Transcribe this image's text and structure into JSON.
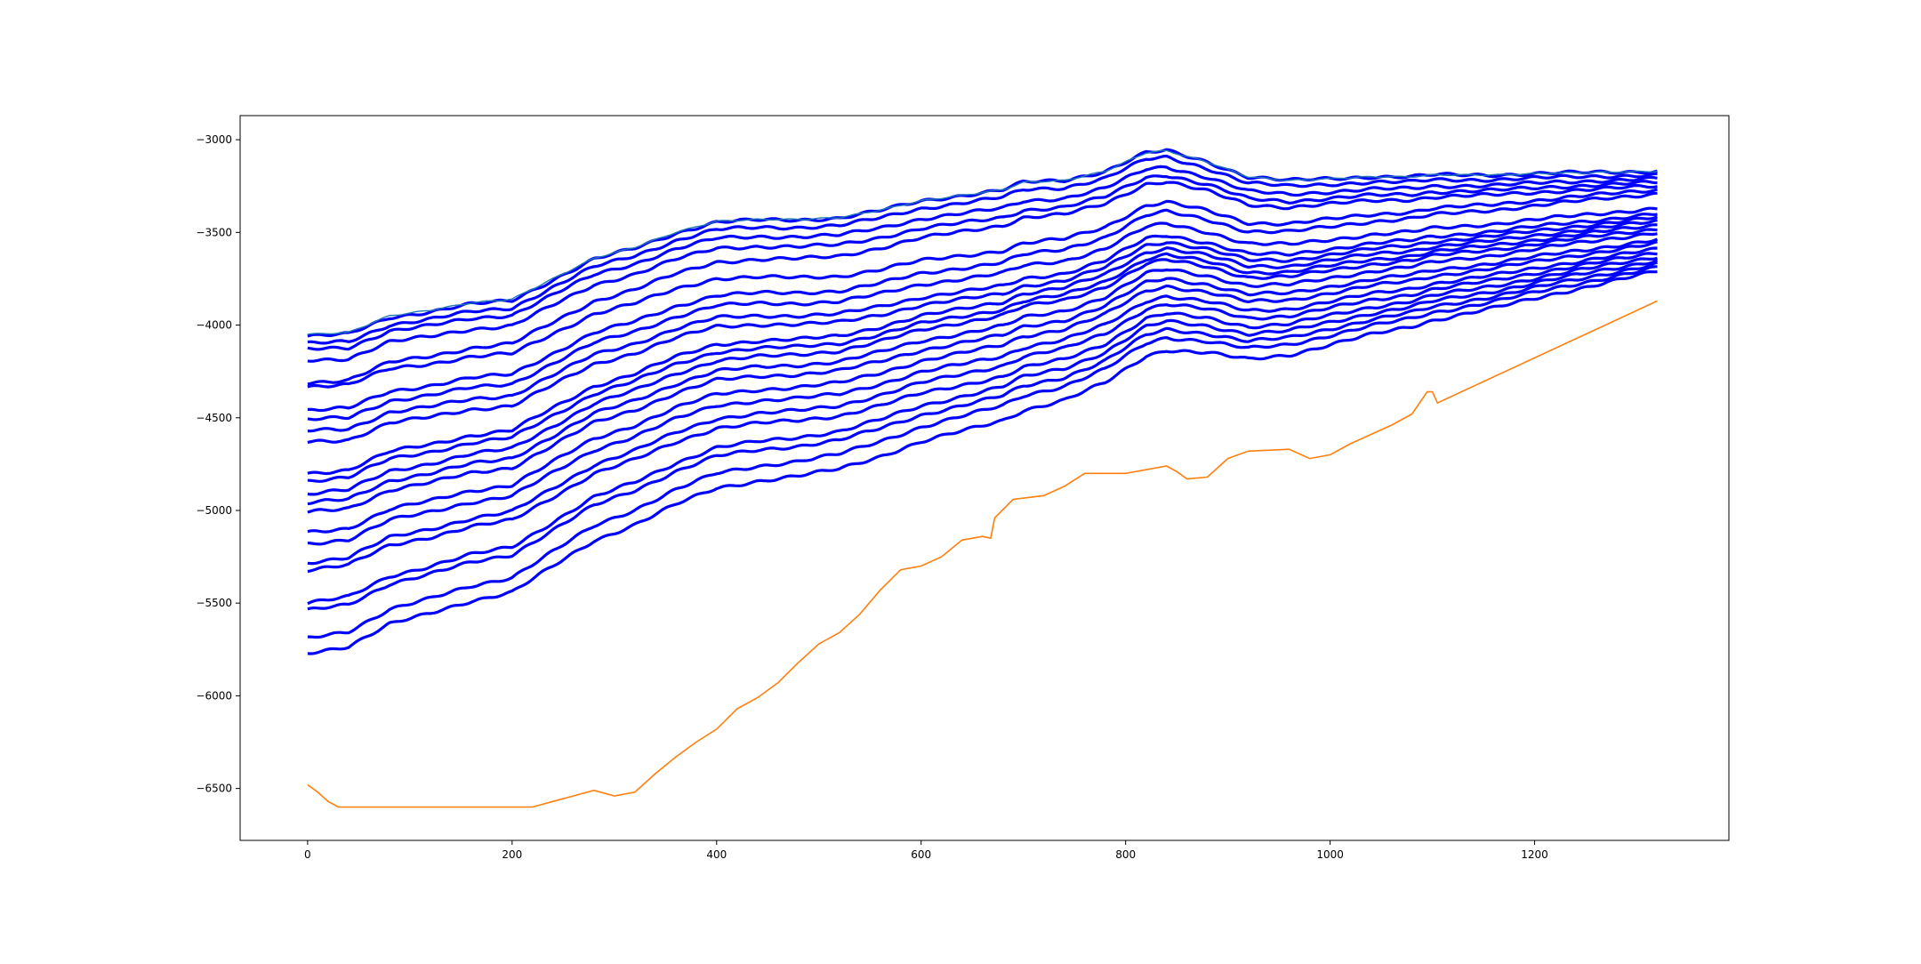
{
  "chart_data": {
    "type": "line",
    "title": "",
    "xlabel": "",
    "ylabel": "",
    "xlim": [
      -66,
      1390
    ],
    "ylim": [
      -6780,
      -2870
    ],
    "xticks": [
      0,
      200,
      400,
      600,
      800,
      1000,
      1200
    ],
    "yticks": [
      -6500,
      -6000,
      -5500,
      -5000,
      -4500,
      -4000,
      -3500,
      -3000
    ],
    "xtick_labels": [
      "0",
      "200",
      "400",
      "600",
      "800",
      "1000",
      "1200"
    ],
    "ytick_labels": [
      "−6500",
      "−6000",
      "−5500",
      "−5000",
      "−4500",
      "−4000",
      "−3500",
      "−3000"
    ],
    "grid": false,
    "legend": "none",
    "colors": {
      "band": "#0000ff",
      "band_top": "#1f77b4",
      "envelope": "#ff7f0e"
    },
    "blue_band_series": {
      "x": [
        0,
        40,
        80,
        120,
        160,
        200,
        240,
        280,
        320,
        360,
        400,
        440,
        480,
        520,
        560,
        600,
        640,
        680,
        700,
        740,
        780,
        820,
        840,
        880,
        920,
        960,
        1000,
        1040,
        1080,
        1100,
        1160,
        1220,
        1320
      ],
      "upper_bound": [
        -4050,
        -4040,
        -3950,
        -3920,
        -3880,
        -3860,
        -3750,
        -3640,
        -3580,
        -3500,
        -3440,
        -3430,
        -3430,
        -3420,
        -3380,
        -3330,
        -3300,
        -3270,
        -3230,
        -3220,
        -3170,
        -3070,
        -3060,
        -3120,
        -3200,
        -3220,
        -3210,
        -3200,
        -3200,
        -3190,
        -3190,
        -3180,
        -3170
      ],
      "start_values": [
        -4060,
        -4100,
        -4130,
        -4190,
        -4310,
        -4330,
        -4460,
        -4510,
        -4570,
        -4630,
        -4800,
        -4840,
        -4910,
        -4960,
        -5010,
        -5120,
        -5180,
        -5280,
        -5320,
        -5500,
        -5540,
        -5690,
        -5770
      ],
      "mid_values_700": [
        -3230,
        -3270,
        -3330,
        -3380,
        -3420,
        -3560,
        -3620,
        -3680,
        -3750,
        -3790,
        -3830,
        -3870,
        -3900,
        -3960,
        -4010,
        -4060,
        -4120,
        -4170,
        -4230,
        -4280,
        -4330,
        -4380,
        -4460
      ],
      "end_values": [
        -3170,
        -3190,
        -3210,
        -3230,
        -3250,
        -3270,
        -3290,
        -3370,
        -3400,
        -3420,
        -3440,
        -3460,
        -3480,
        -3500,
        -3540,
        -3560,
        -3590,
        -3610,
        -3630,
        -3650,
        -3670,
        -3690,
        -3710
      ]
    },
    "envelope_series": {
      "x": [
        0,
        10,
        20,
        30,
        40,
        100,
        150,
        200,
        220,
        240,
        260,
        280,
        300,
        320,
        340,
        360,
        380,
        400,
        420,
        440,
        460,
        480,
        500,
        520,
        540,
        560,
        580,
        600,
        620,
        640,
        660,
        668,
        672,
        690,
        720,
        740,
        760,
        800,
        840,
        850,
        860,
        880,
        900,
        920,
        960,
        980,
        1000,
        1020,
        1040,
        1060,
        1080,
        1095,
        1100,
        1105,
        1320
      ],
      "y": [
        -6480,
        -6520,
        -6570,
        -6600,
        -6600,
        -6600,
        -6600,
        -6600,
        -6600,
        -6570,
        -6540,
        -6510,
        -6540,
        -6520,
        -6420,
        -6330,
        -6250,
        -6180,
        -6070,
        -6010,
        -5930,
        -5820,
        -5720,
        -5660,
        -5560,
        -5430,
        -5320,
        -5300,
        -5250,
        -5160,
        -5140,
        -5150,
        -5040,
        -4940,
        -4920,
        -4870,
        -4800,
        -4800,
        -4760,
        -4790,
        -4830,
        -4820,
        -4720,
        -4680,
        -4670,
        -4720,
        -4700,
        -4640,
        -4590,
        -4540,
        -4480,
        -4360,
        -4360,
        -4420,
        -3870
      ]
    }
  }
}
